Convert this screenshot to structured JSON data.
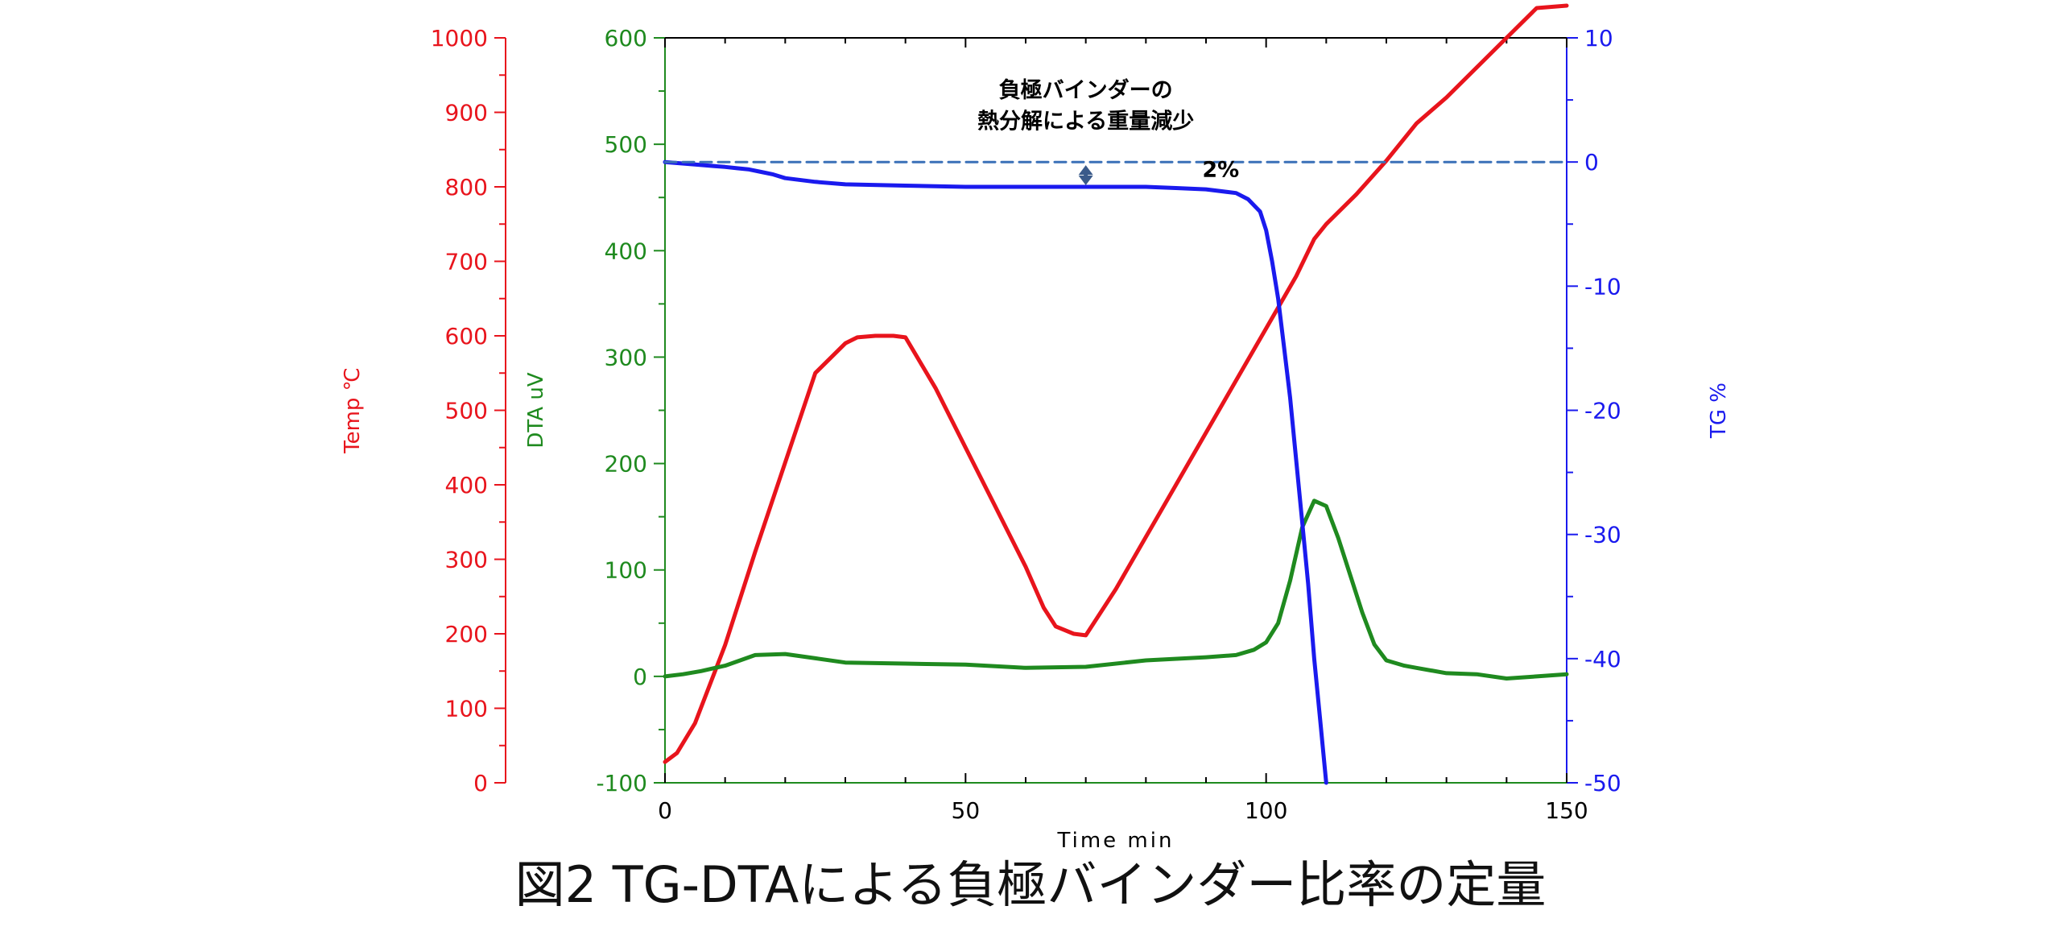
{
  "caption": "図2 TG-DTAによる負極バインダー比率の定量",
  "colors": {
    "temp": "#e8141c",
    "dta": "#1f8a1f",
    "tg": "#1a1aee",
    "reference": "#3a70b8",
    "arrow": "#3a5a8a",
    "frame": "#000000"
  },
  "chart_data": {
    "type": "line",
    "xlabel": "Time min",
    "xlim": [
      0,
      150
    ],
    "x_ticks": [
      "0",
      "50",
      "100",
      "150"
    ],
    "axes": {
      "temp": {
        "label": "Temp ℃",
        "lim": [
          0,
          1000
        ],
        "ticks": [
          "0",
          "100",
          "200",
          "300",
          "400",
          "500",
          "600",
          "700",
          "800",
          "900",
          "1000"
        ]
      },
      "dta": {
        "label": "DTA uV",
        "lim": [
          -100,
          600
        ],
        "ticks": [
          "-100",
          "0",
          "100",
          "200",
          "300",
          "400",
          "500",
          "600"
        ]
      },
      "tg": {
        "label": "TG %",
        "lim": [
          -50,
          10
        ],
        "ticks": [
          "-50",
          "-40",
          "-30",
          "-20",
          "-10",
          "0",
          "10"
        ]
      }
    },
    "series": [
      {
        "axis": "temp",
        "x": [
          0,
          2,
          5,
          10,
          15,
          20,
          25,
          30,
          32,
          35,
          38,
          40,
          45,
          50,
          55,
          60,
          63,
          65,
          68,
          70,
          75,
          80,
          85,
          90,
          95,
          100,
          105,
          108,
          110,
          115,
          120,
          125,
          130,
          135,
          140,
          145,
          150
        ],
        "y": [
          28,
          40,
          80,
          185,
          310,
          430,
          550,
          590,
          598,
          600,
          600,
          598,
          530,
          450,
          370,
          290,
          235,
          210,
          200,
          198,
          260,
          330,
          400,
          470,
          540,
          610,
          680,
          730,
          750,
          790,
          835,
          885,
          920,
          960,
          1000,
          1040,
          1080
        ]
      },
      {
        "axis": "dta",
        "x": [
          0,
          3,
          6,
          10,
          15,
          20,
          25,
          30,
          40,
          50,
          60,
          70,
          80,
          90,
          95,
          98,
          100,
          102,
          104,
          106,
          108,
          110,
          112,
          114,
          116,
          118,
          120,
          123,
          125,
          130,
          135,
          140,
          145,
          150
        ],
        "y": [
          0,
          2,
          5,
          10,
          20,
          21,
          17,
          13,
          12,
          11,
          8,
          9,
          15,
          18,
          20,
          25,
          32,
          50,
          90,
          140,
          165,
          160,
          130,
          95,
          60,
          30,
          15,
          10,
          8,
          3,
          2,
          -2,
          0,
          2
        ]
      },
      {
        "axis": "tg",
        "x": [
          0,
          5,
          10,
          12,
          14,
          16,
          18,
          20,
          25,
          30,
          40,
          50,
          60,
          70,
          75,
          80,
          85,
          90,
          95,
          97,
          99,
          100,
          101,
          102,
          103,
          104,
          105,
          106,
          107,
          108,
          109,
          110
        ],
        "y": [
          0,
          -0.2,
          -0.4,
          -0.5,
          -0.6,
          -0.8,
          -1.0,
          -1.3,
          -1.6,
          -1.8,
          -1.9,
          -2.0,
          -2.0,
          -2.0,
          -2.0,
          -2.0,
          -2.1,
          -2.2,
          -2.5,
          -3.0,
          -4.0,
          -5.5,
          -8.0,
          -11,
          -15,
          -19,
          -24,
          -29,
          -34,
          -40,
          -45,
          -50
        ]
      },
      {
        "axis": "tg",
        "style": "dashed",
        "x": [
          0,
          150
        ],
        "y": [
          0,
          0
        ]
      }
    ],
    "annotations": [
      {
        "text": "負極バインダーの",
        "at": [
          70,
          5.2
        ]
      },
      {
        "text": "熱分解による重量減少",
        "at": [
          70,
          2.7
        ]
      },
      {
        "text": "2%",
        "at": [
          80,
          -1.2
        ]
      }
    ]
  }
}
